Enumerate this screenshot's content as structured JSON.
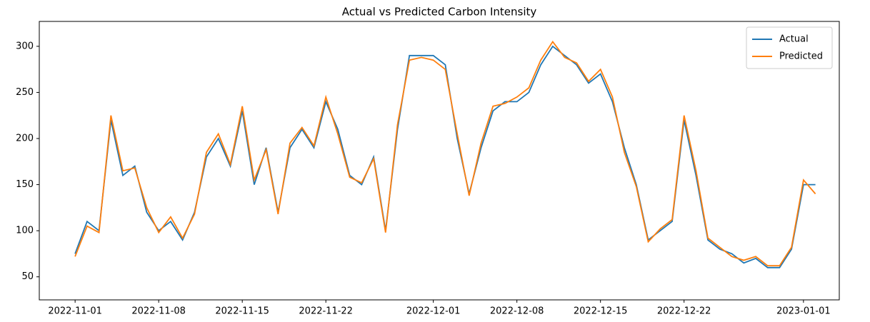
{
  "chart_data": {
    "type": "line",
    "title": "Actual vs Predicted Carbon Intensity",
    "x": [
      "2022-11-01",
      "2022-11-02",
      "2022-11-03",
      "2022-11-04",
      "2022-11-05",
      "2022-11-06",
      "2022-11-07",
      "2022-11-08",
      "2022-11-09",
      "2022-11-10",
      "2022-11-11",
      "2022-11-12",
      "2022-11-13",
      "2022-11-14",
      "2022-11-15",
      "2022-11-16",
      "2022-11-17",
      "2022-11-18",
      "2022-11-19",
      "2022-11-20",
      "2022-11-21",
      "2022-11-22",
      "2022-11-23",
      "2022-11-24",
      "2022-11-25",
      "2022-11-26",
      "2022-11-27",
      "2022-11-28",
      "2022-11-29",
      "2022-11-30",
      "2022-12-01",
      "2022-12-02",
      "2022-12-03",
      "2022-12-04",
      "2022-12-05",
      "2022-12-06",
      "2022-12-07",
      "2022-12-08",
      "2022-12-09",
      "2022-12-10",
      "2022-12-11",
      "2022-12-12",
      "2022-12-13",
      "2022-12-14",
      "2022-12-15",
      "2022-12-16",
      "2022-12-17",
      "2022-12-18",
      "2022-12-19",
      "2022-12-20",
      "2022-12-21",
      "2022-12-22",
      "2022-12-23",
      "2022-12-24",
      "2022-12-25",
      "2022-12-26",
      "2022-12-27",
      "2022-12-28",
      "2022-12-29",
      "2022-12-30",
      "2022-12-31",
      "2023-01-01",
      "2023-01-02"
    ],
    "series": [
      {
        "name": "Actual",
        "color": "#1f77b4",
        "values": [
          75,
          110,
          100,
          220,
          160,
          170,
          120,
          100,
          110,
          90,
          120,
          180,
          200,
          170,
          230,
          150,
          190,
          120,
          190,
          210,
          190,
          240,
          210,
          160,
          150,
          180,
          100,
          210,
          290,
          290,
          290,
          280,
          200,
          140,
          190,
          230,
          240,
          240,
          250,
          280,
          300,
          290,
          280,
          260,
          270,
          240,
          190,
          150,
          90,
          100,
          110,
          220,
          160,
          90,
          80,
          75,
          65,
          70,
          60,
          60,
          80,
          150,
          150
        ]
      },
      {
        "name": "Predicted",
        "color": "#ff7f0e",
        "values": [
          72,
          105,
          98,
          225,
          165,
          168,
          125,
          98,
          115,
          92,
          118,
          185,
          205,
          172,
          235,
          155,
          188,
          118,
          195,
          212,
          192,
          245,
          205,
          158,
          152,
          178,
          98,
          215,
          285,
          288,
          285,
          275,
          205,
          138,
          195,
          235,
          238,
          245,
          255,
          285,
          305,
          288,
          282,
          262,
          275,
          245,
          185,
          148,
          88,
          102,
          112,
          225,
          165,
          92,
          82,
          72,
          68,
          72,
          62,
          62,
          82,
          155,
          140
        ]
      }
    ],
    "xlim": [
      "2022-10-29",
      "2023-01-04"
    ],
    "xticks": [
      "2022-11-01",
      "2022-11-08",
      "2022-11-15",
      "2022-11-22",
      "2022-12-01",
      "2022-12-08",
      "2022-12-15",
      "2022-12-22",
      "2023-01-01"
    ],
    "ylim": [
      25,
      327
    ],
    "yticks": [
      50,
      100,
      150,
      200,
      250,
      300
    ],
    "legend": "upper right",
    "grid": false
  }
}
